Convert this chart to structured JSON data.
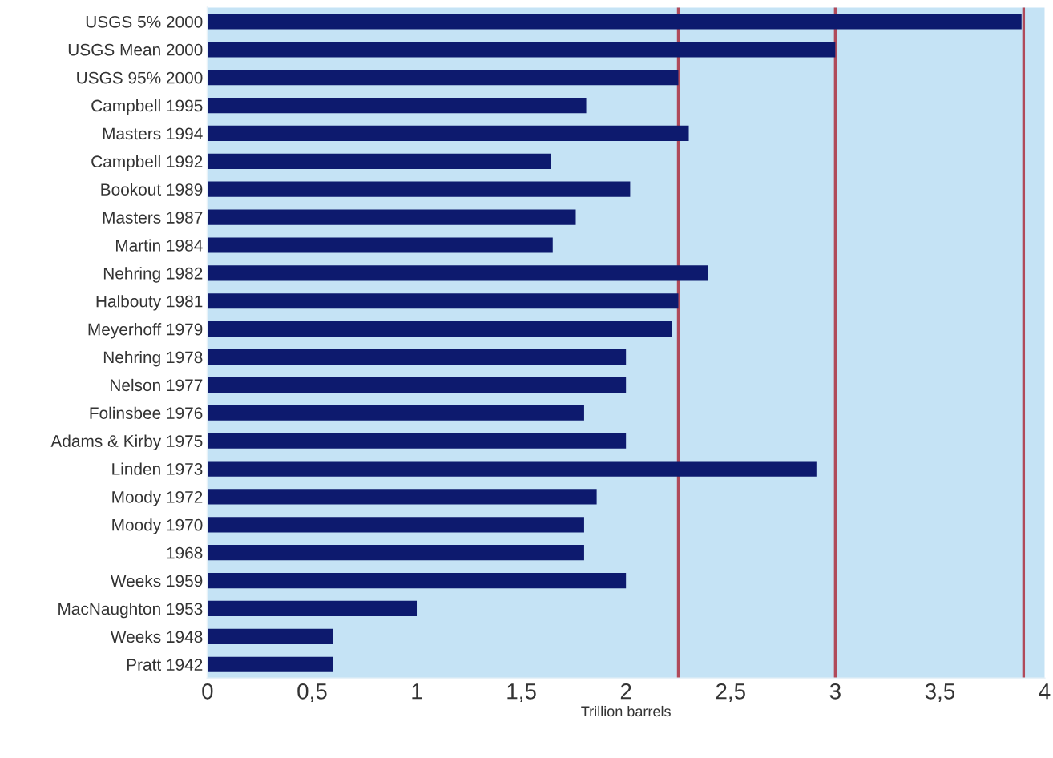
{
  "chart_data": {
    "type": "bar",
    "orientation": "horizontal",
    "xlabel": "Trillion barrels",
    "categories": [
      "USGS 5% 2000",
      "USGS Mean 2000",
      "USGS 95% 2000",
      "Campbell 1995",
      "Masters 1994",
      "Campbell 1992",
      "Bookout 1989",
      "Masters 1987",
      "Martin 1984",
      "Nehring 1982",
      "Halbouty 1981",
      "Meyerhoff 1979",
      "Nehring 1978",
      "Nelson 1977",
      "Folinsbee 1976",
      "Adams & Kirby 1975",
      "Linden 1973",
      "Moody 1972",
      "Moody 1970",
      "1968",
      "Weeks 1959",
      "MacNaughton 1953",
      "Weeks 1948",
      "Pratt 1942"
    ],
    "values": [
      3.89,
      3.0,
      2.25,
      1.81,
      2.3,
      1.64,
      2.02,
      1.76,
      1.65,
      2.39,
      2.25,
      2.22,
      2.0,
      2.0,
      1.8,
      2.0,
      2.91,
      1.86,
      1.8,
      1.8,
      2.0,
      1.0,
      0.6,
      0.6
    ],
    "color": "#0d1a6e",
    "xlim": [
      0,
      4
    ],
    "xticks": [
      0,
      {
        "value": 0.5,
        "label": "0,5"
      },
      1,
      {
        "value": 1.5,
        "label": "1,5"
      },
      2,
      {
        "value": 2.5,
        "label": "2,5"
      },
      3,
      {
        "value": 3.5,
        "label": "3,5"
      },
      4
    ],
    "ref_lines": [
      {
        "axis": "x",
        "value": 2.25,
        "color": "#b04a5a"
      },
      {
        "axis": "x",
        "value": 3.0,
        "color": "#b04a5a"
      },
      {
        "axis": "x",
        "value": 3.9,
        "color": "#b04a5a"
      }
    ],
    "grid": false
  }
}
